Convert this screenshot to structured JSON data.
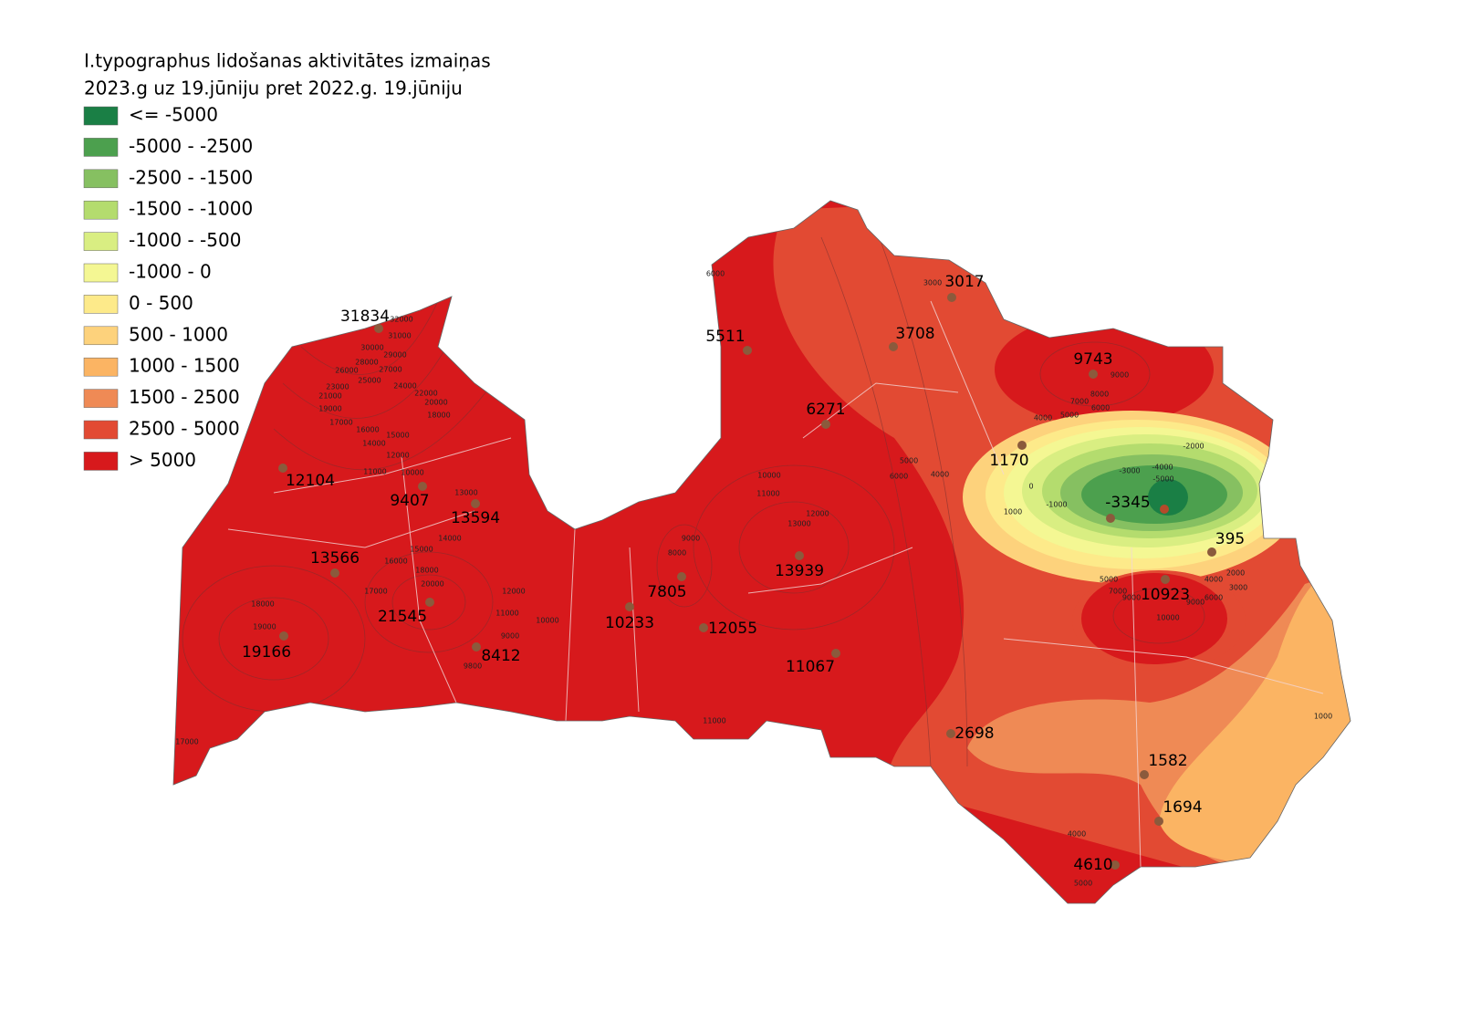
{
  "legend": {
    "title": [
      "I.typographus lidošanas aktivitātes izmaiņas",
      "2023.g uz 19.jūniju pret 2022.g. 19.jūniju"
    ],
    "items": [
      {
        "label": "<= -5000",
        "color": "#1a7f45"
      },
      {
        "label": "-5000 - -2500",
        "color": "#4ca04e"
      },
      {
        "label": "-2500 - -1500",
        "color": "#86c061"
      },
      {
        "label": "-1500 - -1000",
        "color": "#b4dc6e"
      },
      {
        "label": "-1000 - -500",
        "color": "#d9ee82"
      },
      {
        "label": "-1000 - 0",
        "color": "#f4f793"
      },
      {
        "label": "0 - 500",
        "color": "#fdea8a"
      },
      {
        "label": "500 - 1000",
        "color": "#fdd27c"
      },
      {
        "label": "1000 - 1500",
        "color": "#fbb463"
      },
      {
        "label": "1500 - 2500",
        "color": "#ef8a55"
      },
      {
        "label": "2500 - 5000",
        "color": "#e24a33"
      },
      {
        "label": "> 5000",
        "color": "#d7191c"
      }
    ]
  },
  "points": [
    31834,
    12104,
    9407,
    13594,
    13566,
    21545,
    19166,
    8412,
    7805,
    10233,
    12055,
    13939,
    11067,
    6271,
    5511,
    3708,
    3017,
    9743,
    1170,
    -3345,
    395,
    10923,
    2698,
    1582,
    1694,
    4610
  ],
  "contour_labels": [
    32000,
    31000,
    30000,
    29000,
    28000,
    27000,
    26000,
    25000,
    24000,
    23000,
    22000,
    21000,
    20000,
    19000,
    18000,
    17000,
    16000,
    15000,
    14000,
    12000,
    11000,
    10000,
    13000,
    14000,
    15000,
    16000,
    17000,
    18000,
    20000,
    18000,
    19000,
    12000,
    11000,
    10000,
    9000,
    9800,
    17000,
    9000,
    8000,
    10000,
    11000,
    12000,
    13000,
    11000,
    9000,
    8000,
    7000,
    6000,
    5000,
    4000,
    6000,
    3000,
    5000,
    6000,
    4000,
    1000,
    0,
    -1000,
    -2000,
    -3000,
    -4000,
    -5000,
    5000,
    7000,
    9000,
    10000,
    9000,
    6000,
    4000,
    3000,
    2000,
    1000,
    4000,
    5000
  ]
}
